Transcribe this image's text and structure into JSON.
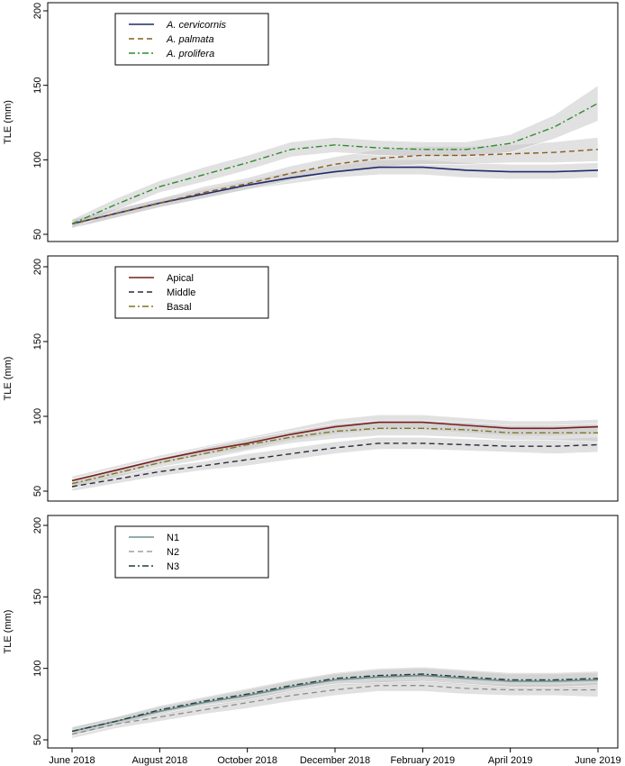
{
  "chart_data": [
    {
      "type": "line",
      "ylabel": "TLE (mm)",
      "ylim": [
        50,
        200
      ],
      "yticks": [
        "50",
        "100",
        "150",
        "200"
      ],
      "x": [
        0,
        1,
        2,
        3,
        4,
        5,
        6,
        7,
        8,
        9,
        10,
        11,
        12
      ],
      "legend_position": "top-left",
      "legend_italic": true,
      "band_color": "#c9c9c9",
      "series": [
        {
          "name": "A. cervicornis",
          "color": "#1f2a6b",
          "dash": "",
          "width": 1.6,
          "values": [
            57,
            64,
            71,
            77,
            83,
            88,
            92,
            95,
            95,
            93,
            92,
            92,
            93
          ],
          "band": [
            3,
            3,
            3,
            3,
            3,
            4,
            4,
            5,
            5,
            5,
            5,
            5,
            5
          ]
        },
        {
          "name": "A. palmata",
          "color": "#8a5a1e",
          "dash": "6,4",
          "width": 1.4,
          "values": [
            57,
            64,
            71,
            78,
            84,
            91,
            97,
            101,
            103,
            103,
            104,
            105,
            107
          ],
          "band": [
            3,
            3,
            3,
            4,
            4,
            5,
            5,
            6,
            6,
            6,
            6,
            7,
            8
          ]
        },
        {
          "name": "A. prolifera",
          "color": "#2e8b2e",
          "dash": "7,3,2,3",
          "width": 1.4,
          "values": [
            57,
            70,
            82,
            90,
            98,
            107,
            110,
            108,
            107,
            107,
            111,
            122,
            138
          ],
          "band": [
            3,
            4,
            4,
            5,
            5,
            5,
            5,
            5,
            5,
            5,
            6,
            8,
            12
          ]
        }
      ]
    },
    {
      "type": "line",
      "ylabel": "TLE (mm)",
      "ylim": [
        50,
        200
      ],
      "yticks": [
        "50",
        "100",
        "150",
        "200"
      ],
      "x": [
        0,
        1,
        2,
        3,
        4,
        5,
        6,
        7,
        8,
        9,
        10,
        11,
        12
      ],
      "legend_position": "top-left",
      "legend_italic": false,
      "band_color": "#c9c9c9",
      "series": [
        {
          "name": "Apical",
          "color": "#7a1f1f",
          "dash": "",
          "width": 1.6,
          "values": [
            57,
            64,
            71,
            77,
            82,
            88,
            93,
            96,
            96,
            94,
            92,
            92,
            93
          ],
          "band": [
            3,
            3,
            3,
            3,
            4,
            4,
            5,
            5,
            5,
            5,
            5,
            5,
            5
          ]
        },
        {
          "name": "Middle",
          "color": "#2b2b3a",
          "dash": "6,4",
          "width": 1.4,
          "values": [
            53,
            58,
            63,
            67,
            71,
            75,
            79,
            82,
            82,
            81,
            80,
            80,
            81
          ],
          "band": [
            3,
            3,
            3,
            3,
            4,
            4,
            4,
            4,
            4,
            4,
            4,
            5,
            5
          ]
        },
        {
          "name": "Basal",
          "color": "#7f7520",
          "dash": "7,3,2,3",
          "width": 1.4,
          "values": [
            55,
            62,
            69,
            75,
            81,
            86,
            90,
            92,
            92,
            91,
            89,
            89,
            89
          ],
          "band": [
            3,
            3,
            3,
            4,
            4,
            4,
            5,
            5,
            5,
            5,
            5,
            5,
            6
          ]
        }
      ]
    },
    {
      "type": "line",
      "ylabel": "TLE (mm)",
      "ylim": [
        50,
        200
      ],
      "yticks": [
        "50",
        "100",
        "150",
        "200"
      ],
      "x": [
        0,
        1,
        2,
        3,
        4,
        5,
        6,
        7,
        8,
        9,
        10,
        11,
        12
      ],
      "xticks": [
        {
          "x": 0,
          "label": "June 2018"
        },
        {
          "x": 2,
          "label": "August 2018"
        },
        {
          "x": 4,
          "label": "October 2018"
        },
        {
          "x": 6,
          "label": "December 2018"
        },
        {
          "x": 8,
          "label": "February 2019"
        },
        {
          "x": 10,
          "label": "April 2019"
        },
        {
          "x": 12,
          "label": "June 2019"
        }
      ],
      "legend_position": "top-left",
      "legend_italic": false,
      "band_color": "#c9c9c9",
      "series": [
        {
          "name": "N1",
          "color": "#6f8f8f",
          "dash": "",
          "width": 1.6,
          "values": [
            56,
            63,
            70,
            76,
            81,
            87,
            92,
            94,
            95,
            93,
            91,
            91,
            92
          ],
          "band": [
            3,
            3,
            3,
            3,
            4,
            4,
            4,
            5,
            5,
            5,
            5,
            5,
            5
          ]
        },
        {
          "name": "N2",
          "color": "#8c8c8c",
          "dash": "6,4",
          "width": 1.3,
          "values": [
            54,
            61,
            66,
            71,
            76,
            81,
            85,
            88,
            88,
            86,
            85,
            85,
            85
          ],
          "band": [
            3,
            3,
            3,
            3,
            4,
            4,
            4,
            4,
            4,
            4,
            4,
            4,
            5
          ]
        },
        {
          "name": "N3",
          "color": "#1f3d3d",
          "dash": "7,3,2,3",
          "width": 1.4,
          "values": [
            56,
            63,
            71,
            77,
            82,
            88,
            93,
            95,
            96,
            94,
            92,
            92,
            93
          ],
          "band": [
            3,
            3,
            3,
            3,
            4,
            4,
            4,
            5,
            5,
            5,
            5,
            5,
            5
          ]
        }
      ]
    }
  ]
}
